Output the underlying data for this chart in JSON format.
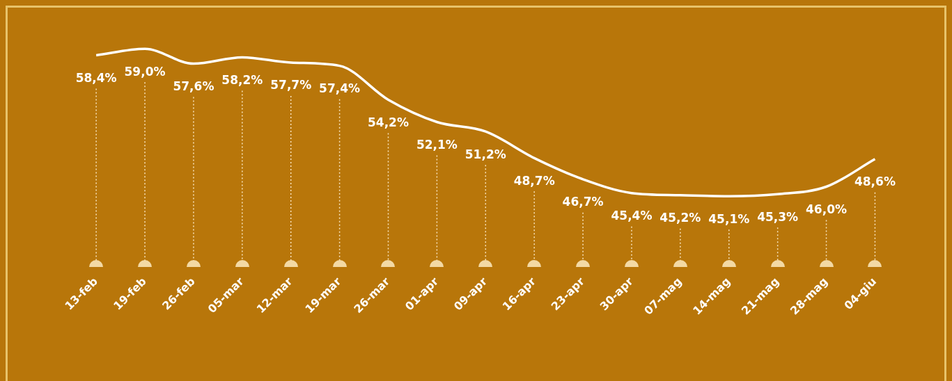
{
  "chart_data": {
    "type": "line",
    "categories": [
      "13-feb",
      "19-feb",
      "26-feb",
      "05-mar",
      "12-mar",
      "19-mar",
      "26-mar",
      "01-apr",
      "09-apr",
      "16-apr",
      "23-apr",
      "30-apr",
      "07-mag",
      "14-mag",
      "21-mag",
      "28-mag",
      "04-giu"
    ],
    "values": [
      58.4,
      59.0,
      57.6,
      58.2,
      57.7,
      57.4,
      54.2,
      52.1,
      51.2,
      48.7,
      46.7,
      45.4,
      45.2,
      45.1,
      45.3,
      46.0,
      48.6
    ],
    "value_labels": [
      "58,4%",
      "59,0%",
      "57,6%",
      "58,2%",
      "57,7%",
      "57,4%",
      "54,2%",
      "52,1%",
      "51,2%",
      "48,7%",
      "46,7%",
      "45,4%",
      "45,2%",
      "45,1%",
      "45,3%",
      "46,0%",
      "48,6%"
    ],
    "color": "#ffffff",
    "marker": "none",
    "tick_labels": "x",
    "grid": "x",
    "legend": false
  }
}
